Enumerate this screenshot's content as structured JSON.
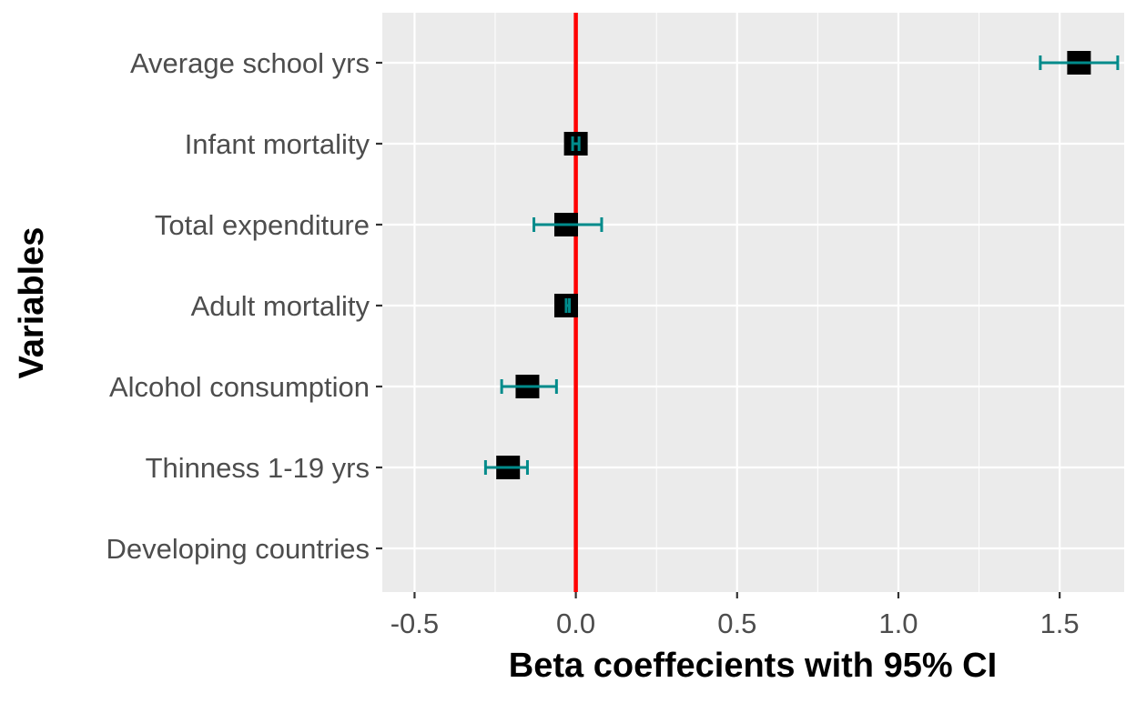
{
  "chart_data": {
    "type": "forest",
    "title": "",
    "xlabel": "Beta coeffecients with 95% CI",
    "ylabel": "Variables",
    "xlim": [
      -0.6,
      1.7
    ],
    "x_ticks": [
      -0.5,
      0.0,
      0.5,
      1.0,
      1.5
    ],
    "x_tick_labels": [
      "-0.5",
      "0.0",
      "0.5",
      "1.0",
      "1.5"
    ],
    "grid": true,
    "reference_line": {
      "x": 0.0,
      "color": "#ff0000"
    },
    "point_color": "#000000",
    "ci_color": "#008b8b",
    "background_color": "#ebebeb",
    "categories": [
      "Average school yrs",
      "Infant mortality",
      "Total expenditure",
      "Adult mortality",
      "Alcohol consumption",
      "Thinness 1-19 yrs",
      "Developing countries"
    ],
    "estimates": [
      {
        "variable": "Average school yrs",
        "estimate": 1.56,
        "lower": 1.44,
        "upper": 1.68
      },
      {
        "variable": "Infant mortality",
        "estimate": 0.0,
        "lower": -0.01,
        "upper": 0.01
      },
      {
        "variable": "Total expenditure",
        "estimate": -0.03,
        "lower": -0.13,
        "upper": 0.08
      },
      {
        "variable": "Adult mortality",
        "estimate": -0.03,
        "lower": -0.03,
        "upper": -0.02
      },
      {
        "variable": "Alcohol consumption",
        "estimate": -0.15,
        "lower": -0.23,
        "upper": -0.06
      },
      {
        "variable": "Thinness 1-19 yrs",
        "estimate": -0.21,
        "lower": -0.28,
        "upper": -0.15
      },
      {
        "variable": "Developing countries",
        "estimate": null,
        "lower": null,
        "upper": null
      }
    ]
  }
}
